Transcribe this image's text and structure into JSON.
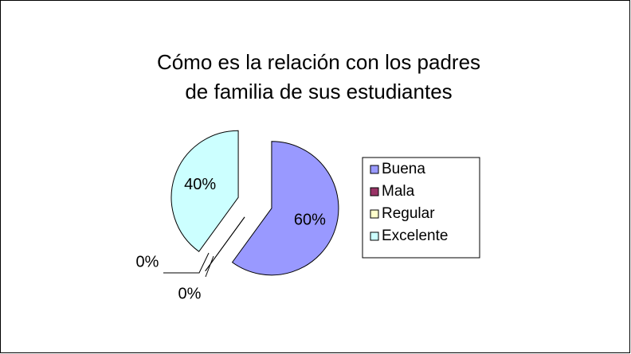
{
  "chart_data": {
    "type": "pie",
    "title": "Cómo es la relación con los padres de familia de sus estudiantes",
    "categories": [
      "Buena",
      "Mala",
      "Regular",
      "Excelente"
    ],
    "values": [
      60,
      0,
      0,
      40
    ],
    "value_labels": [
      "60%",
      "0%",
      "0%",
      "40%"
    ],
    "colors": [
      "#9999ff",
      "#993366",
      "#ffffcc",
      "#ccffff"
    ],
    "legend": "right"
  }
}
